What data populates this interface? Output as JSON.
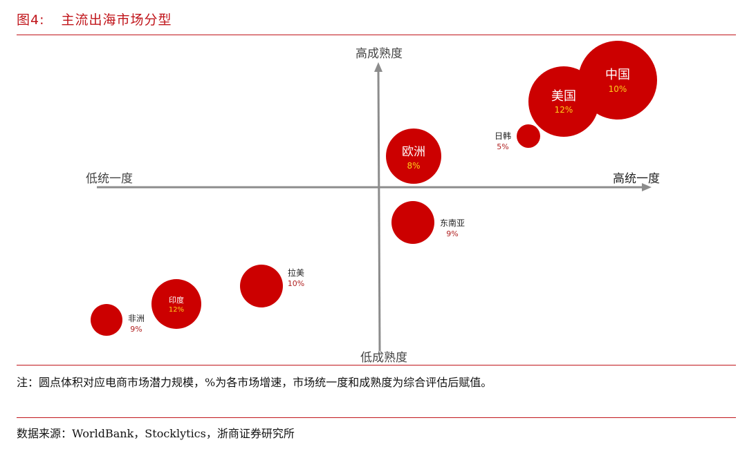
{
  "figure": {
    "number": "图4:",
    "title": "主流出海市场分型"
  },
  "axes": {
    "y_top": "高成熟度",
    "y_bottom": "低成熟度",
    "x_left": "低统一度",
    "x_right": "高统一度"
  },
  "colors": {
    "accent": "#c0141a",
    "bubble": "#cc0000",
    "axis": "#8c8c8c",
    "percent_inside": "#ffd21a",
    "percent_outside": "#b02020"
  },
  "markets": [
    {
      "name": "中国",
      "growth": "10%"
    },
    {
      "name": "美国",
      "growth": "12%"
    },
    {
      "name": "日韩",
      "growth": "5%"
    },
    {
      "name": "欧洲",
      "growth": "8%"
    },
    {
      "name": "东南亚",
      "growth": "9%"
    },
    {
      "name": "拉美",
      "growth": "10%"
    },
    {
      "name": "印度",
      "growth": "12%"
    },
    {
      "name": "非洲",
      "growth": "9%"
    }
  ],
  "note": "注：圆点体积对应电商市场潜力规模，%为各市场增速，市场统一度和成熟度为综合评估后赋值。",
  "source": "数据来源：WorldBank，Stocklytics，浙商证券研究所"
}
